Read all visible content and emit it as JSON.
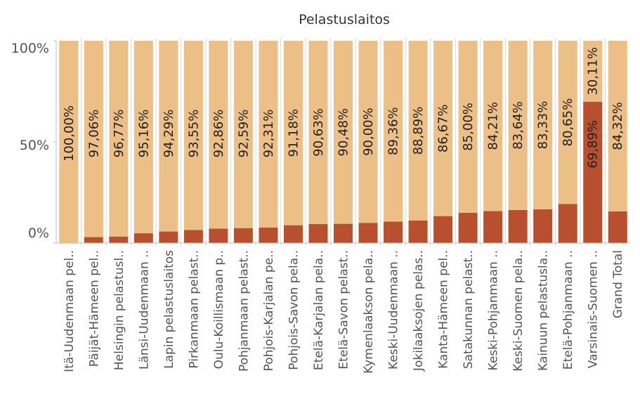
{
  "colors": {
    "bottom": "#b8502f",
    "top": "#ecbf87",
    "grid": "#d9d9d9",
    "axis": "#bfbfbf"
  },
  "chart_data": {
    "type": "bar",
    "stacked": true,
    "title": "Pelastuslaitos",
    "xlabel": "",
    "ylabel": "",
    "ylim": [
      0,
      100
    ],
    "yticks": [
      "0%",
      "50%",
      "100%"
    ],
    "categories": [
      "Itä-Uudenmaan pel..",
      "Päijät-Hämeen pel..",
      "Helsingin pelastusl..",
      "Länsi-Uudenmaan ..",
      "Lapin pelastuslaitos",
      "Pirkanmaan pelast..",
      "Oulu-Koillismaan p..",
      "Pohjanmaan pelast..",
      "Pohjois-Karjalan pe..",
      "Pohjois-Savon pela..",
      "Etelä-Karjalan pela..",
      "Etelä-Savon pelast..",
      "Kymenlaakson pela..",
      "Keski-Uudenmaan ..",
      "Jokilaaksojen pelas..",
      "Kanta-Hämeen pel..",
      "Satakunnan pelast..",
      "Keski-Pohjanmaan ..",
      "Keski-Suomen pela..",
      "Kainuun pelastusla..",
      "Etelä-Pohjanmaan ..",
      "Varsinais-Suomen ..",
      "Grand Total"
    ],
    "series": [
      {
        "values": [
          0.0,
          2.94,
          3.23,
          4.84,
          5.71,
          6.45,
          7.14,
          7.41,
          7.69,
          8.82,
          9.37,
          9.52,
          10.0,
          10.64,
          11.11,
          13.33,
          15.0,
          15.79,
          16.36,
          16.67,
          19.35,
          69.89,
          15.68
        ]
      },
      {
        "values": [
          100.0,
          97.06,
          96.77,
          95.16,
          94.29,
          93.55,
          92.86,
          92.59,
          92.31,
          91.18,
          90.63,
          90.48,
          90.0,
          89.36,
          88.89,
          86.67,
          85.0,
          84.21,
          83.64,
          83.33,
          80.65,
          30.11,
          84.32
        ]
      }
    ],
    "labels_top": [
      "100,00%",
      "97,06%",
      "96,77%",
      "95,16%",
      "94,29%",
      "93,55%",
      "92,86%",
      "92,59%",
      "92,31%",
      "91,18%",
      "90,63%",
      "90,48%",
      "90,00%",
      "89,36%",
      "88,89%",
      "86,67%",
      "85,00%",
      "84,21%",
      "83,64%",
      "83,33%",
      "80,65%",
      "30,11%",
      "84,32%"
    ],
    "labels_bottom": [
      "",
      "",
      "",
      "",
      "",
      "",
      "",
      "",
      "",
      "",
      "",
      "",
      "",
      "",
      "",
      "",
      "",
      "",
      "",
      "",
      "",
      "69,89%",
      ""
    ]
  }
}
